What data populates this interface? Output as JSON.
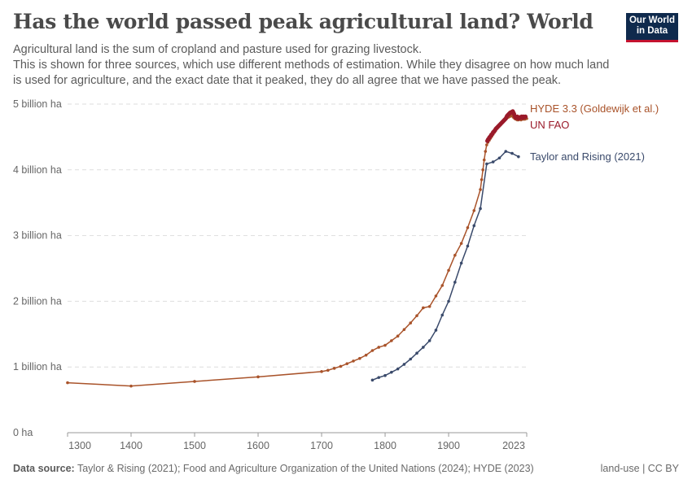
{
  "header": {
    "title": "Has the world passed peak agricultural land? World",
    "subtitle_lines": [
      "Agricultural land is the sum of cropland and pasture used for grazing livestock.",
      "This is shown for three sources, which use different methods of estimation. While they disagree on how much land is used for agriculture, and the exact date that it peaked, they do all agree that we have passed the peak."
    ],
    "logo_line1": "Our World",
    "logo_line2": "in Data"
  },
  "footer": {
    "source_label": "Data source:",
    "source_text": " Taylor & Rising (2021); Food and Agriculture Organization of the United Nations (2024); HYDE (2023)",
    "license": "land-use | CC BY"
  },
  "chart_data": {
    "type": "line",
    "title": "Has the world passed peak agricultural land? World",
    "xlim": [
      1300,
      2023
    ],
    "ylim": [
      0,
      5
    ],
    "x_ticks": [
      1300,
      1400,
      1500,
      1600,
      1700,
      1800,
      1900,
      2023
    ],
    "y_ticks": [
      0,
      1,
      2,
      3,
      4,
      5
    ],
    "y_tick_labels": [
      "0 ha",
      "1 billion ha",
      "2 billion ha",
      "3 billion ha",
      "4 billion ha",
      "5 billion ha"
    ],
    "grid": "horizontal-dashed",
    "legend": "right-inline-labels",
    "series": [
      {
        "name": "HYDE 3.3 (Goldewijk et al.)",
        "color": "#a9532a",
        "x": [
          1300,
          1400,
          1500,
          1600,
          1700,
          1710,
          1720,
          1730,
          1740,
          1750,
          1760,
          1770,
          1780,
          1790,
          1800,
          1810,
          1820,
          1830,
          1840,
          1850,
          1860,
          1870,
          1880,
          1890,
          1900,
          1910,
          1920,
          1930,
          1940,
          1950,
          1952,
          1954,
          1956,
          1958,
          1960,
          1962,
          1964,
          1966,
          1968,
          1970,
          1972,
          1974,
          1976,
          1978,
          1980,
          1982,
          1984,
          1986,
          1988,
          1990,
          1992,
          1994,
          1996,
          1998,
          2000,
          2002,
          2004,
          2006,
          2008,
          2010,
          2012,
          2014,
          2016,
          2018,
          2020,
          2022,
          2023
        ],
        "y": [
          0.76,
          0.71,
          0.78,
          0.85,
          0.93,
          0.95,
          0.98,
          1.01,
          1.05,
          1.09,
          1.13,
          1.18,
          1.25,
          1.3,
          1.33,
          1.4,
          1.47,
          1.57,
          1.67,
          1.78,
          1.9,
          1.92,
          2.08,
          2.24,
          2.47,
          2.7,
          2.88,
          3.12,
          3.38,
          3.7,
          3.85,
          4.0,
          4.15,
          4.28,
          4.38,
          4.42,
          4.45,
          4.48,
          4.51,
          4.54,
          4.57,
          4.6,
          4.63,
          4.65,
          4.68,
          4.7,
          4.72,
          4.74,
          4.76,
          4.77,
          4.79,
          4.8,
          4.81,
          4.82,
          4.82,
          4.8,
          4.78,
          4.77,
          4.76,
          4.76,
          4.77,
          4.76,
          4.77,
          4.77,
          4.77,
          4.78,
          4.78
        ]
      },
      {
        "name": "UN FAO",
        "color": "#9a1a2a",
        "x_start": 1961,
        "y": [
          4.44,
          4.46,
          4.47,
          4.49,
          4.5,
          4.51,
          4.53,
          4.54,
          4.55,
          4.57,
          4.58,
          4.59,
          4.6,
          4.62,
          4.63,
          4.64,
          4.65,
          4.66,
          4.67,
          4.68,
          4.69,
          4.7,
          4.71,
          4.72,
          4.73,
          4.74,
          4.75,
          4.76,
          4.77,
          4.78,
          4.8,
          4.82,
          4.83,
          4.84,
          4.85,
          4.86,
          4.87,
          4.87,
          4.88,
          4.88,
          4.89,
          4.87,
          4.85,
          4.82,
          4.8,
          4.79,
          4.8,
          4.81,
          4.79,
          4.78,
          4.79,
          4.8,
          4.79,
          4.8,
          4.81,
          4.79,
          4.8,
          4.81,
          4.8,
          4.8,
          4.81
        ]
      },
      {
        "name": "Taylor and Rising (2021)",
        "color": "#3a4a6b",
        "x": [
          1780,
          1790,
          1800,
          1810,
          1820,
          1830,
          1840,
          1850,
          1860,
          1870,
          1880,
          1890,
          1900,
          1910,
          1920,
          1930,
          1940,
          1950,
          1960,
          1970,
          1980,
          1990,
          2000,
          2010
        ],
        "y": [
          0.8,
          0.84,
          0.87,
          0.92,
          0.97,
          1.04,
          1.12,
          1.21,
          1.3,
          1.4,
          1.56,
          1.79,
          2.0,
          2.29,
          2.58,
          2.84,
          3.15,
          3.41,
          4.09,
          4.12,
          4.18,
          4.28,
          4.25,
          4.2
        ]
      }
    ]
  }
}
